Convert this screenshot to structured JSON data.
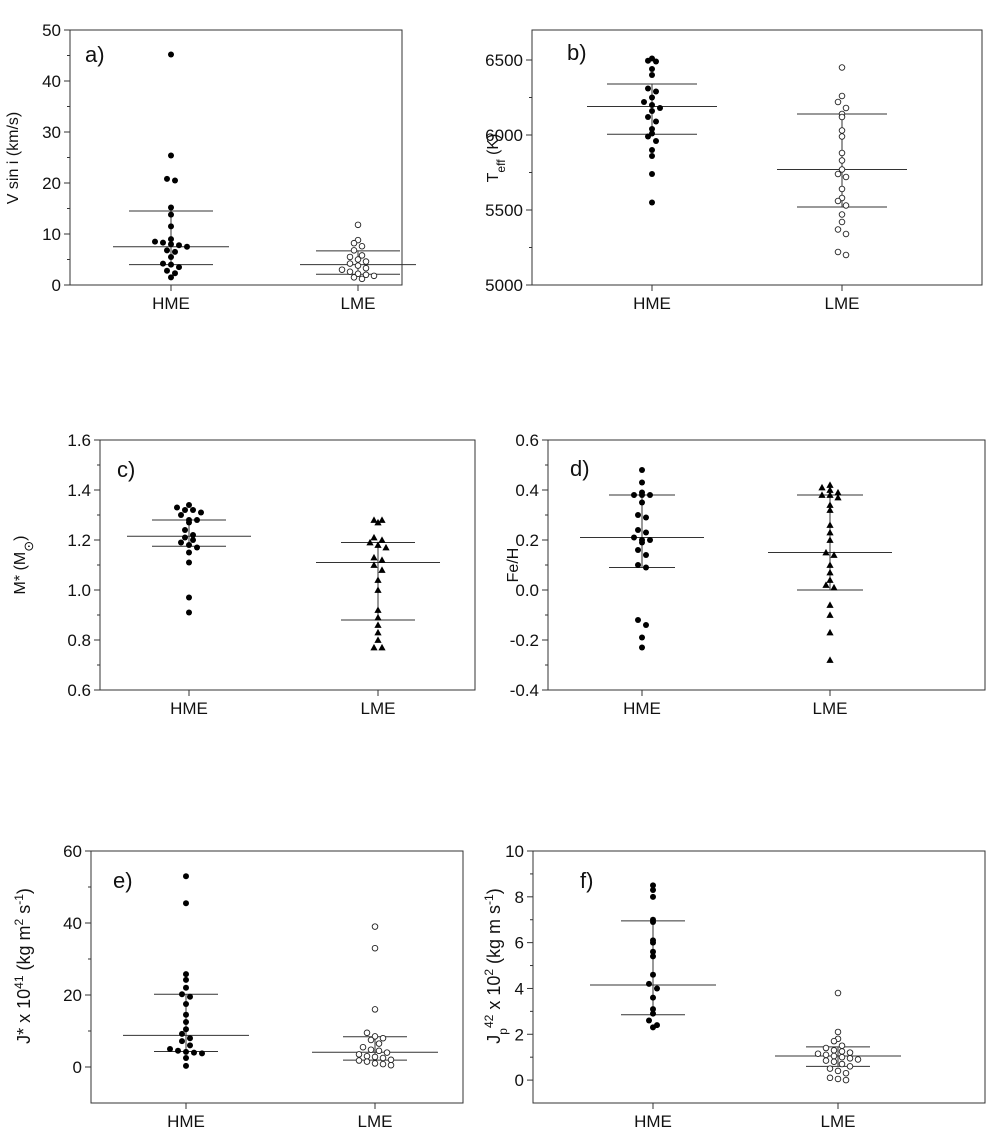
{
  "chart_data": [
    {
      "id": "a",
      "type": "scatter",
      "panel_label": "a)",
      "ylabel": "V sin i (km/s)",
      "ylim": [
        0,
        50
      ],
      "yticks": [
        0,
        10,
        20,
        30,
        40,
        50
      ],
      "ytick_labels": [
        "0",
        "10",
        "20",
        "30",
        "40",
        "50"
      ],
      "categories": [
        "HME",
        "LME"
      ],
      "series": [
        {
          "name": "HME",
          "marker": "filled-circle",
          "median": 7.5,
          "q1": 4.0,
          "q3": 14.5,
          "values": [
            45.2,
            25.4,
            20.8,
            20.5,
            15.2,
            13.8,
            11.5,
            9.0,
            8.5,
            8.3,
            8.0,
            7.8,
            7.5,
            6.8,
            6.5,
            5.5,
            4.2,
            4.0,
            3.5,
            2.8,
            2.3,
            1.5
          ]
        },
        {
          "name": "LME",
          "marker": "open-circle",
          "median": 4.0,
          "q1": 2.1,
          "q3": 6.7,
          "values": [
            11.8,
            8.8,
            8.2,
            7.6,
            6.8,
            5.8,
            5.5,
            5.0,
            4.6,
            4.2,
            3.8,
            3.3,
            3.0,
            2.6,
            2.2,
            2.0,
            1.8,
            1.5,
            1.2
          ]
        }
      ]
    },
    {
      "id": "b",
      "type": "scatter",
      "panel_label": "b)",
      "ylabel": "T",
      "ylabel_sub": "eff",
      "ylabel_suffix": " (K)",
      "ylim": [
        5000,
        6700
      ],
      "yticks": [
        5000,
        5500,
        6000,
        6500
      ],
      "ytick_labels": [
        "5000",
        "5500",
        "6000",
        "6500"
      ],
      "categories": [
        "HME",
        "LME"
      ],
      "series": [
        {
          "name": "HME",
          "marker": "filled-circle",
          "median": 6190,
          "q1": 6005,
          "q3": 6340,
          "values": [
            6510,
            6495,
            6490,
            6440,
            6400,
            6310,
            6290,
            6250,
            6220,
            6200,
            6180,
            6160,
            6120,
            6090,
            6040,
            6010,
            5990,
            5960,
            5900,
            5860,
            5740,
            5550
          ]
        },
        {
          "name": "LME",
          "marker": "open-circle",
          "median": 5770,
          "q1": 5520,
          "q3": 6140,
          "values": [
            6450,
            6260,
            6220,
            6180,
            6140,
            6120,
            6030,
            5990,
            5880,
            5830,
            5770,
            5740,
            5720,
            5640,
            5580,
            5560,
            5530,
            5470,
            5420,
            5370,
            5340,
            5220,
            5200
          ]
        }
      ]
    },
    {
      "id": "c",
      "type": "scatter",
      "panel_label": "c)",
      "ylabel": "M* (M",
      "ylabel_suffix": ")",
      "ylabel_symbol": "sun",
      "ylim": [
        0.6,
        1.6
      ],
      "yticks": [
        0.6,
        0.8,
        1.0,
        1.2,
        1.4,
        1.6
      ],
      "ytick_labels": [
        "0.6",
        "0.8",
        "1.0",
        "1.2",
        "1.4",
        "1.6"
      ],
      "categories": [
        "HME",
        "LME"
      ],
      "series": [
        {
          "name": "HME",
          "marker": "filled-circle",
          "median": 1.215,
          "q1": 1.175,
          "q3": 1.28,
          "values": [
            1.34,
            1.33,
            1.32,
            1.32,
            1.31,
            1.3,
            1.28,
            1.28,
            1.27,
            1.24,
            1.22,
            1.21,
            1.2,
            1.19,
            1.18,
            1.17,
            1.15,
            1.11,
            0.97,
            0.91
          ]
        },
        {
          "name": "LME",
          "marker": "filled-triangle",
          "median": 1.11,
          "q1": 0.88,
          "q3": 1.19,
          "values": [
            1.28,
            1.28,
            1.27,
            1.21,
            1.2,
            1.19,
            1.18,
            1.17,
            1.13,
            1.12,
            1.1,
            1.08,
            1.04,
            1.0,
            0.92,
            0.89,
            0.86,
            0.83,
            0.8,
            0.77,
            0.77
          ]
        }
      ]
    },
    {
      "id": "d",
      "type": "scatter",
      "panel_label": "d)",
      "ylabel": "Fe/H",
      "ylim": [
        -0.4,
        0.6
      ],
      "yticks": [
        -0.4,
        -0.2,
        0.0,
        0.2,
        0.4,
        0.6
      ],
      "ytick_labels": [
        "-0.4",
        "-0.2",
        "0.0",
        "0.2",
        "0.4",
        "0.6"
      ],
      "categories": [
        "HME",
        "LME"
      ],
      "series": [
        {
          "name": "HME",
          "marker": "filled-circle",
          "median": 0.21,
          "q1": 0.09,
          "q3": 0.38,
          "values": [
            0.48,
            0.43,
            0.39,
            0.38,
            0.38,
            0.38,
            0.35,
            0.3,
            0.29,
            0.24,
            0.23,
            0.21,
            0.2,
            0.2,
            0.19,
            0.16,
            0.14,
            0.1,
            0.09,
            -0.12,
            -0.14,
            -0.19,
            -0.23
          ]
        },
        {
          "name": "LME",
          "marker": "filled-triangle",
          "median": 0.15,
          "q1": 0.0,
          "q3": 0.38,
          "values": [
            0.42,
            0.41,
            0.4,
            0.39,
            0.38,
            0.38,
            0.37,
            0.34,
            0.32,
            0.26,
            0.23,
            0.2,
            0.15,
            0.14,
            0.1,
            0.07,
            0.04,
            0.02,
            0.01,
            -0.06,
            -0.1,
            -0.17,
            -0.28
          ]
        }
      ]
    },
    {
      "id": "e",
      "type": "scatter",
      "panel_label": "e)",
      "ylabel": "J* x 10",
      "ylabel_sup": "41",
      "ylabel_suffix": " (kg m",
      "ylabel_sup2": "2",
      "ylabel_mid": " s",
      "ylabel_sup3": "-1",
      "ylabel_end": ")",
      "ylim": [
        -10,
        60
      ],
      "yticks": [
        0,
        20,
        40,
        60
      ],
      "ytick_labels": [
        "0",
        "20",
        "40",
        "60"
      ],
      "categories": [
        "HME",
        "LME"
      ],
      "series": [
        {
          "name": "HME",
          "marker": "filled-circle",
          "median": 8.8,
          "q1": 4.3,
          "q3": 20.2,
          "values": [
            53.0,
            45.5,
            25.8,
            24.2,
            22.0,
            20.2,
            19.5,
            17.5,
            14.5,
            12.5,
            10.5,
            9.2,
            8.0,
            7.2,
            6.0,
            5.0,
            4.5,
            4.2,
            4.0,
            3.8,
            2.5,
            0.3
          ]
        },
        {
          "name": "LME",
          "marker": "open-circle",
          "median": 4.1,
          "q1": 1.9,
          "q3": 8.4,
          "values": [
            39.0,
            33.0,
            16.0,
            9.5,
            8.5,
            8.0,
            7.5,
            6.5,
            5.5,
            4.8,
            4.5,
            4.0,
            3.5,
            3.0,
            2.8,
            2.5,
            2.0,
            1.8,
            1.5,
            1.0,
            0.8,
            0.5
          ]
        }
      ]
    },
    {
      "id": "f",
      "type": "scatter",
      "panel_label": "f)",
      "ylabel": "J",
      "ylabel_sub": "p",
      "ylabel_suffix": " x 10",
      "ylabel_sup": "42",
      "ylabel_mid": " (kg m",
      "ylabel_sup2": "2",
      "ylabel_mid2": " s",
      "ylabel_sup3": "-1",
      "ylabel_end": ")",
      "ylim": [
        -1,
        10
      ],
      "yticks": [
        0,
        2,
        4,
        6,
        8,
        10
      ],
      "ytick_labels": [
        "0",
        "2",
        "4",
        "6",
        "8",
        "10"
      ],
      "categories": [
        "HME",
        "LME"
      ],
      "series": [
        {
          "name": "HME",
          "marker": "filled-circle",
          "median": 4.15,
          "q1": 2.85,
          "q3": 6.95,
          "values": [
            8.5,
            8.3,
            8.0,
            7.0,
            6.9,
            6.1,
            6.0,
            5.6,
            5.4,
            4.6,
            4.2,
            4.0,
            3.6,
            3.1,
            2.9,
            2.6,
            2.4,
            2.3
          ]
        },
        {
          "name": "LME",
          "marker": "open-circle",
          "median": 1.05,
          "q1": 0.6,
          "q3": 1.45,
          "values": [
            3.8,
            2.1,
            1.8,
            1.7,
            1.5,
            1.4,
            1.3,
            1.25,
            1.2,
            1.15,
            1.1,
            1.05,
            1.0,
            0.95,
            0.9,
            0.85,
            0.8,
            0.7,
            0.6,
            0.5,
            0.4,
            0.3,
            0.1,
            0.05,
            0.0
          ]
        }
      ]
    }
  ]
}
